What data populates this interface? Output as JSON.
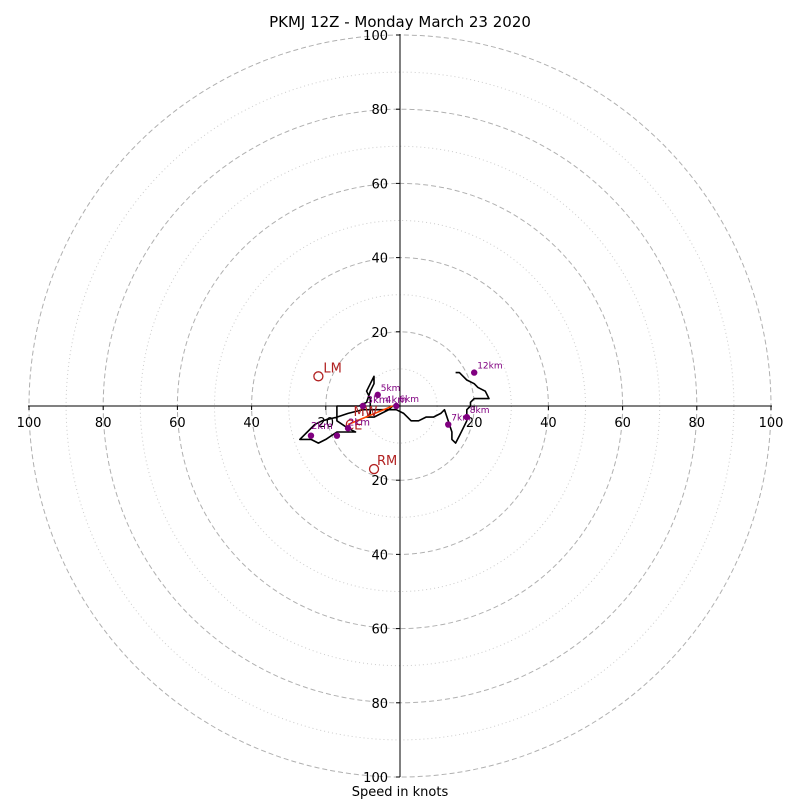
{
  "chart_data": {
    "type": "scatter",
    "title": "PKMJ 12Z - Monday March 23 2020",
    "xlabel": "Speed in knots",
    "xlim": [
      -100,
      100
    ],
    "ylim": [
      -100,
      100
    ],
    "x_tick_labels": [
      "100",
      "80",
      "60",
      "40",
      "20",
      "20",
      "40",
      "60",
      "80",
      "100"
    ],
    "y_tick_labels": [
      "100",
      "80",
      "60",
      "40",
      "20",
      "20",
      "40",
      "60",
      "80",
      "100"
    ],
    "rings_dashed": [
      20,
      40,
      60,
      80,
      100
    ],
    "rings_dotted": [
      10,
      30,
      50,
      70,
      90
    ],
    "hodograph": [
      [
        -2,
        0
      ],
      [
        -3,
        -1
      ],
      [
        -5,
        -2
      ],
      [
        -7,
        -3
      ],
      [
        -9,
        -3
      ],
      [
        -8,
        -2
      ],
      [
        -8,
        2
      ],
      [
        -9,
        4
      ],
      [
        -8,
        6
      ],
      [
        -7,
        8
      ],
      [
        -7,
        6
      ],
      [
        -8,
        4
      ],
      [
        -9,
        1
      ],
      [
        -11,
        0
      ],
      [
        -13,
        0
      ],
      [
        -17,
        0
      ],
      [
        -17,
        -2
      ],
      [
        -17,
        -4
      ],
      [
        -14,
        -6
      ],
      [
        -12,
        -7
      ],
      [
        -17,
        -7
      ],
      [
        -20,
        -9
      ],
      [
        -22,
        -10
      ],
      [
        -24,
        -9
      ],
      [
        -27,
        -9
      ],
      [
        -25,
        -7
      ],
      [
        -23,
        -5
      ],
      [
        -21,
        -4
      ],
      [
        -17,
        -3
      ],
      [
        -14,
        -2
      ],
      [
        -10,
        -1
      ],
      [
        -7,
        -1
      ],
      [
        -4,
        -1
      ],
      [
        -1,
        -1
      ],
      [
        1,
        -2
      ],
      [
        2,
        -3
      ],
      [
        3,
        -4
      ],
      [
        5,
        -4
      ],
      [
        7,
        -3
      ],
      [
        9,
        -3
      ],
      [
        11,
        -2
      ],
      [
        12,
        -1
      ],
      [
        13,
        -4
      ],
      [
        14,
        -7
      ],
      [
        14,
        -9
      ],
      [
        15,
        -10
      ],
      [
        16,
        -8
      ],
      [
        17,
        -6
      ],
      [
        18,
        -4
      ],
      [
        18,
        -1
      ],
      [
        19,
        0
      ],
      [
        19,
        1
      ],
      [
        20,
        2
      ],
      [
        22,
        2
      ],
      [
        24,
        2
      ],
      [
        23,
        4
      ],
      [
        21,
        5
      ],
      [
        20,
        6
      ],
      [
        18,
        7
      ],
      [
        17,
        8
      ],
      [
        16,
        9
      ],
      [
        15,
        9
      ]
    ],
    "height_markers": [
      {
        "label": "",
        "x": -14,
        "y": -6
      },
      {
        "label": "",
        "x": -17,
        "y": -8
      },
      {
        "label": "",
        "x": -24,
        "y": -8
      },
      {
        "label": "",
        "x": -10,
        "y": 0
      },
      {
        "label": "5km",
        "x": -6,
        "y": 3
      },
      {
        "label": "6km",
        "x": -1,
        "y": 0
      },
      {
        "label": "7km",
        "x": 13,
        "y": -5
      },
      {
        "label": "8km",
        "x": 18,
        "y": -3
      },
      {
        "label": "12km",
        "x": 20,
        "y": 9
      }
    ],
    "inner_labels": [
      {
        "text": "2km",
        "x": -14,
        "y": -6,
        "size": 10
      },
      {
        "text": "2km",
        "x": -24,
        "y": -7,
        "size": 10
      },
      {
        "text": "3km",
        "x": -9,
        "y": 0,
        "size": 10
      },
      {
        "text": "4km",
        "x": -4,
        "y": 0,
        "size": 10
      }
    ],
    "storm_motion": {
      "LM": {
        "x": -22,
        "y": 8
      },
      "RM": {
        "x": -7,
        "y": -17
      },
      "MW": {
        "x": -12,
        "y": -3
      },
      "CE": {
        "x": -14,
        "y": -5
      }
    },
    "shear_vector": {
      "from": [
        -14,
        -5
      ],
      "to": [
        -2,
        0
      ]
    },
    "colors": {
      "hodograph": "#000000",
      "marker": "#800080",
      "storm": "#b22222",
      "shear": "#ff4500",
      "grid": "#b0b0b0"
    }
  }
}
